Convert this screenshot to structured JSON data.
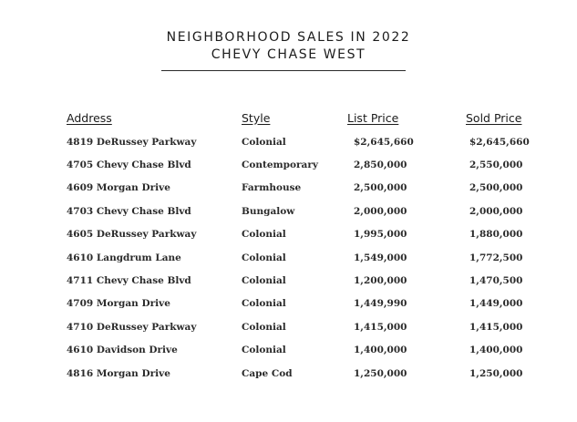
{
  "title": {
    "line1": "NEIGHBORHOOD SALES IN 2022",
    "line2": "CHEVY CHASE WEST"
  },
  "table": {
    "headers": {
      "address": "Address",
      "style": "Style",
      "list_price": "List Price",
      "sold_price": "Sold Price"
    },
    "rows": [
      {
        "address": "4819 DeRussey Parkway",
        "style": "Colonial",
        "list_price": "$2,645,660",
        "sold_price": "$2,645,660"
      },
      {
        "address": "4705 Chevy Chase Blvd",
        "style": "Contemporary",
        "list_price": "2,850,000",
        "sold_price": "2,550,000"
      },
      {
        "address": "4609 Morgan Drive",
        "style": "Farmhouse",
        "list_price": "2,500,000",
        "sold_price": "2,500,000"
      },
      {
        "address": "4703 Chevy Chase Blvd",
        "style": "Bungalow",
        "list_price": "2,000,000",
        "sold_price": "2,000,000"
      },
      {
        "address": "4605 DeRussey Parkway",
        "style": "Colonial",
        "list_price": "1,995,000",
        "sold_price": "1,880,000"
      },
      {
        "address": "4610 Langdrum Lane",
        "style": "Colonial",
        "list_price": "1,549,000",
        "sold_price": "1,772,500"
      },
      {
        "address": "4711 Chevy Chase Blvd",
        "style": "Colonial",
        "list_price": "1,200,000",
        "sold_price": "1,470,500"
      },
      {
        "address": "4709 Morgan Drive",
        "style": "Colonial",
        "list_price": "1,449,990",
        "sold_price": "1,449,000"
      },
      {
        "address": "4710 DeRussey Parkway",
        "style": "Colonial",
        "list_price": "1,415,000",
        "sold_price": "1,415,000"
      },
      {
        "address": "4610 Davidson Drive",
        "style": "Colonial",
        "list_price": "1,400,000",
        "sold_price": "1,400,000"
      },
      {
        "address": "4816 Morgan Drive",
        "style": "Cape Cod",
        "list_price": "1,250,000",
        "sold_price": "1,250,000"
      }
    ]
  }
}
